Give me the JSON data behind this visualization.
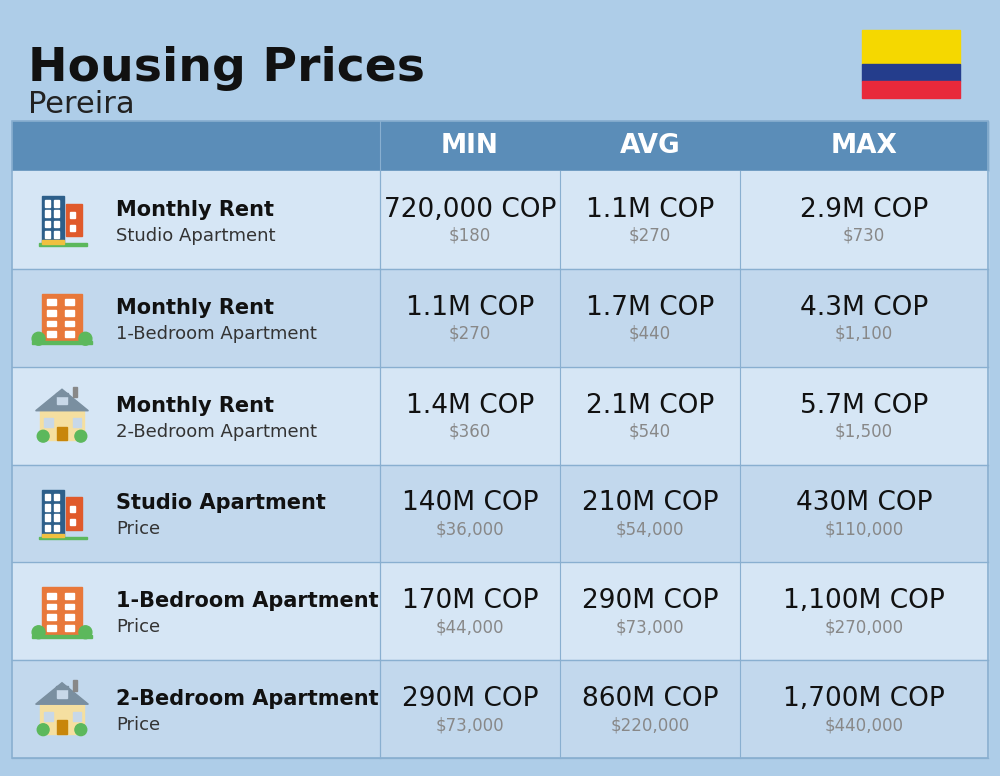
{
  "title": "Housing Prices",
  "subtitle": "Pereira",
  "background_color": "#aecde8",
  "header_bg_color": "#5b8db8",
  "header_text_color": "#ffffff",
  "row_bg_color_1": "#d6e6f5",
  "row_bg_color_2": "#c2d8ed",
  "col_headers": [
    "MIN",
    "AVG",
    "MAX"
  ],
  "rows": [
    {
      "bold_label": "Monthly Rent",
      "sub_label": "Studio Apartment",
      "min_main": "720,000 COP",
      "min_sub": "$180",
      "avg_main": "1.1M COP",
      "avg_sub": "$270",
      "max_main": "2.9M COP",
      "max_sub": "$730",
      "icon_type": "studio_blue"
    },
    {
      "bold_label": "Monthly Rent",
      "sub_label": "1-Bedroom Apartment",
      "min_main": "1.1M COP",
      "min_sub": "$270",
      "avg_main": "1.7M COP",
      "avg_sub": "$440",
      "max_main": "4.3M COP",
      "max_sub": "$1,100",
      "icon_type": "one_bed_orange"
    },
    {
      "bold_label": "Monthly Rent",
      "sub_label": "2-Bedroom Apartment",
      "min_main": "1.4M COP",
      "min_sub": "$360",
      "avg_main": "2.1M COP",
      "avg_sub": "$540",
      "max_main": "5.7M COP",
      "max_sub": "$1,500",
      "icon_type": "two_bed_house"
    },
    {
      "bold_label": "Studio Apartment",
      "sub_label": "Price",
      "min_main": "140M COP",
      "min_sub": "$36,000",
      "avg_main": "210M COP",
      "avg_sub": "$54,000",
      "max_main": "430M COP",
      "max_sub": "$110,000",
      "icon_type": "studio_blue"
    },
    {
      "bold_label": "1-Bedroom Apartment",
      "sub_label": "Price",
      "min_main": "170M COP",
      "min_sub": "$44,000",
      "avg_main": "290M COP",
      "avg_sub": "$73,000",
      "max_main": "1,100M COP",
      "max_sub": "$270,000",
      "icon_type": "one_bed_orange"
    },
    {
      "bold_label": "2-Bedroom Apartment",
      "sub_label": "Price",
      "min_main": "290M COP",
      "min_sub": "$73,000",
      "avg_main": "860M COP",
      "avg_sub": "$220,000",
      "max_main": "1,700M COP",
      "max_sub": "$440,000",
      "icon_type": "two_bed_house"
    }
  ],
  "flag_colors": [
    "#f5d800",
    "#243d8c",
    "#e8293b"
  ],
  "divider_color": "#89afd0",
  "main_value_fontsize": 19,
  "sub_value_fontsize": 12,
  "label_bold_fontsize": 15,
  "label_sub_fontsize": 13,
  "header_fontsize": 19
}
